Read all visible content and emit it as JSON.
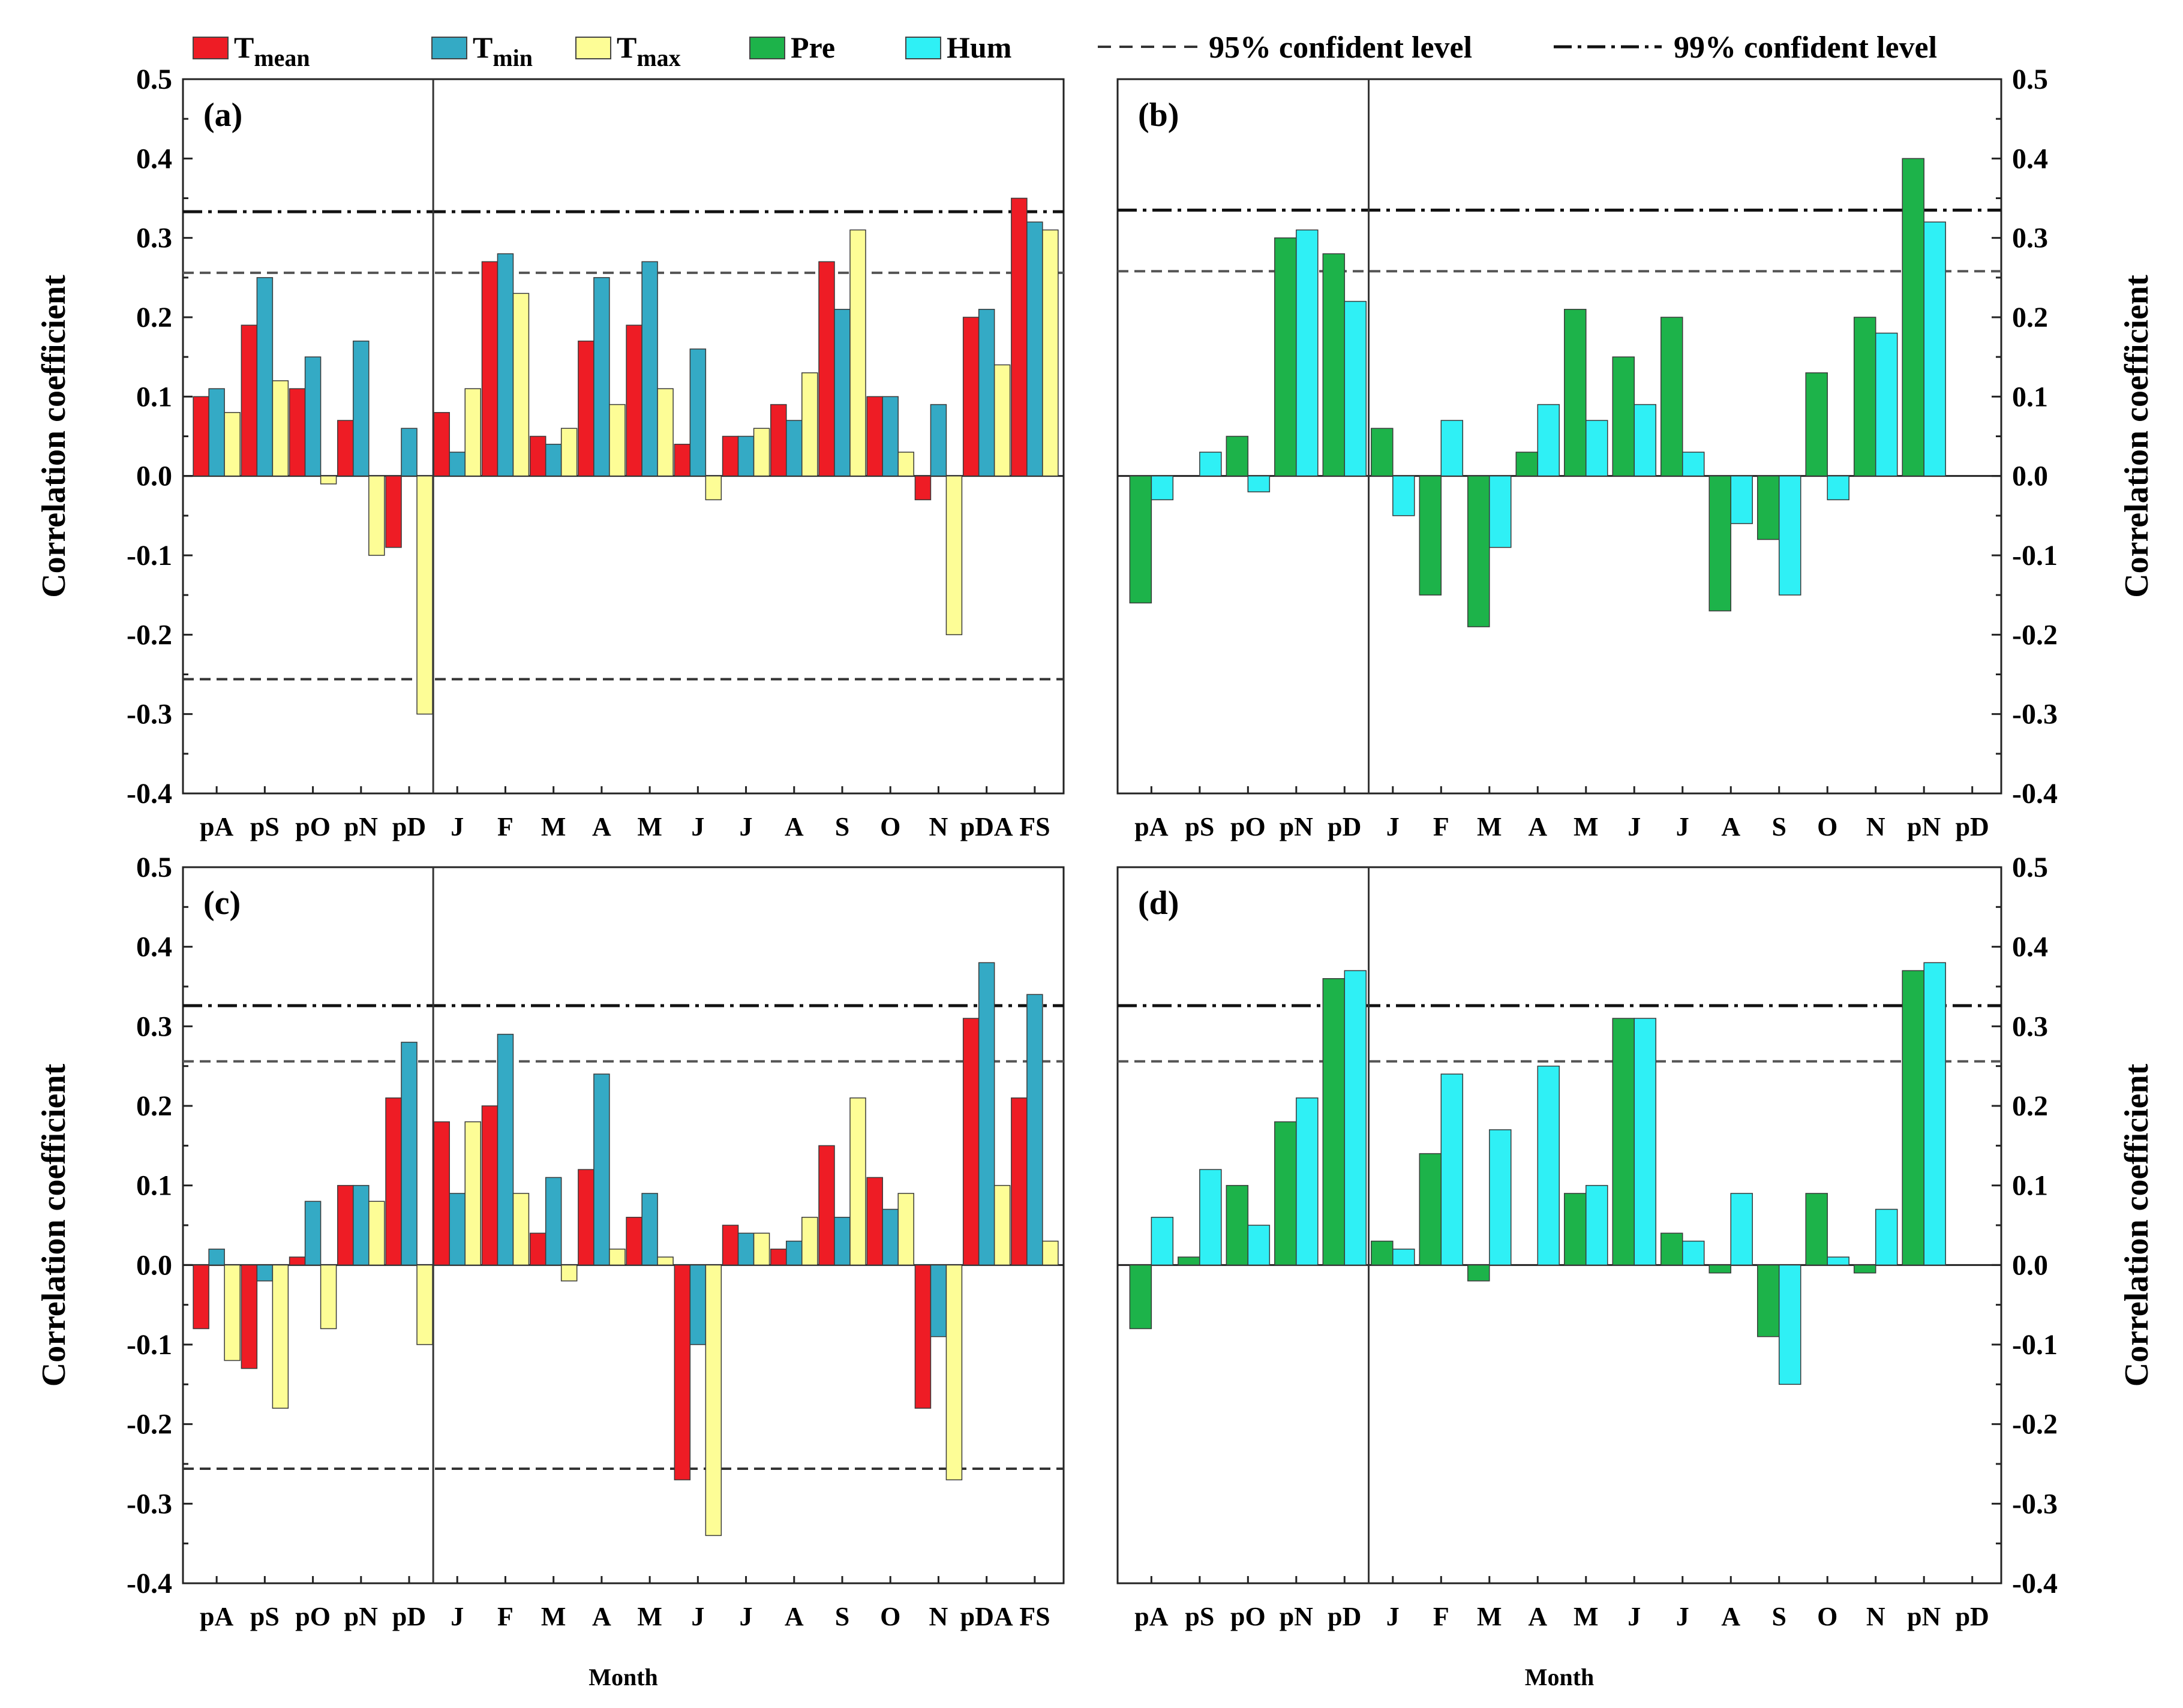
{
  "legend": {
    "items": [
      {
        "key": "Tmean",
        "label": "T",
        "sub": "mean",
        "color": "#ee1c25"
      },
      {
        "key": "Tmin",
        "label": "T",
        "sub": "min",
        "color": "#34aac5"
      },
      {
        "key": "Tmax",
        "label": "T",
        "sub": "max",
        "color": "#fdfd96"
      },
      {
        "key": "Pre",
        "label": "Pre",
        "sub": "",
        "color": "#1db34a"
      },
      {
        "key": "Hum",
        "label": "Hum",
        "sub": "",
        "color": "#2ff0f5"
      }
    ],
    "lines": [
      {
        "label": "95% confident level",
        "style": "dashed"
      },
      {
        "label": "99% confident level",
        "style": "dashdot"
      }
    ]
  },
  "axis_label_y": "Correlation coefficient",
  "axis_label_x": "Month",
  "chart_data": [
    {
      "panel": "(a)",
      "type": "bar",
      "ylabel": "Correlation coefficient",
      "xlabel": "",
      "ylim": [
        -0.4,
        0.5
      ],
      "yticks": [
        "0.5",
        "0.4",
        "0.3",
        "0.2",
        "0.1",
        "0.0",
        "-0.1",
        "-0.2",
        "-0.3",
        "-0.4"
      ],
      "yaxis_side": "left",
      "categories": [
        "pA",
        "pS",
        "pO",
        "pN",
        "pD",
        "J",
        "F",
        "M",
        "A",
        "M",
        "J",
        "J",
        "A",
        "S",
        "O",
        "N",
        "pDA",
        "FS"
      ],
      "divider_after": 5,
      "ci95": 0.256,
      "ci99": 0.333,
      "ci95_negative": -0.256,
      "series": [
        {
          "name": "Tmean",
          "values": [
            0.1,
            0.19,
            0.11,
            0.07,
            -0.09,
            0.08,
            0.27,
            0.05,
            0.17,
            0.19,
            0.04,
            0.05,
            0.09,
            0.27,
            0.1,
            -0.03,
            0.2,
            0.35
          ]
        },
        {
          "name": "Tmin",
          "values": [
            0.11,
            0.25,
            0.15,
            0.17,
            0.06,
            0.03,
            0.28,
            0.04,
            0.25,
            0.27,
            0.16,
            0.05,
            0.07,
            0.21,
            0.1,
            0.09,
            0.21,
            0.32
          ]
        },
        {
          "name": "Tmax",
          "values": [
            0.08,
            0.12,
            -0.01,
            -0.1,
            -0.3,
            0.11,
            0.23,
            0.06,
            0.09,
            0.11,
            -0.03,
            0.06,
            0.13,
            0.31,
            0.03,
            -0.2,
            0.14,
            0.31
          ]
        }
      ]
    },
    {
      "panel": "(b)",
      "type": "bar",
      "ylabel": "Correlation coefficient",
      "xlabel": "",
      "ylim": [
        -0.4,
        0.5
      ],
      "yticks": [
        "0.5",
        "0.4",
        "0.3",
        "0.2",
        "0.1",
        "0.0",
        "-0.1",
        "-0.2",
        "-0.3",
        "-0.4"
      ],
      "yaxis_side": "right",
      "categories": [
        "pA",
        "pS",
        "pO",
        "pN",
        "pD",
        "J",
        "F",
        "M",
        "A",
        "M",
        "J",
        "J",
        "A",
        "S",
        "O",
        "N",
        "pN",
        "pD"
      ],
      "divider_after": 5,
      "ci95": 0.258,
      "ci99": 0.335,
      "ci95_negative": null,
      "series": [
        {
          "name": "Pre",
          "values": [
            -0.16,
            0.0,
            0.05,
            0.3,
            0.28,
            0.06,
            -0.15,
            -0.19,
            0.03,
            0.21,
            0.15,
            0.2,
            -0.17,
            -0.08,
            0.13,
            0.2,
            0.4,
            0.0
          ]
        },
        {
          "name": "Hum",
          "values": [
            -0.03,
            0.03,
            -0.02,
            0.31,
            0.22,
            -0.05,
            0.07,
            -0.09,
            0.09,
            0.07,
            0.09,
            0.03,
            -0.06,
            -0.15,
            -0.03,
            0.18,
            0.32,
            0.0
          ]
        }
      ]
    },
    {
      "panel": "(c)",
      "type": "bar",
      "ylabel": "Correlation coefficient",
      "xlabel": "Month",
      "ylim": [
        -0.4,
        0.5
      ],
      "yticks": [
        "0.5",
        "0.4",
        "0.3",
        "0.2",
        "0.1",
        "0.0",
        "-0.1",
        "-0.2",
        "-0.3",
        "-0.4"
      ],
      "yaxis_side": "left",
      "categories": [
        "pA",
        "pS",
        "pO",
        "pN",
        "pD",
        "J",
        "F",
        "M",
        "A",
        "M",
        "J",
        "J",
        "A",
        "S",
        "O",
        "N",
        "pDA",
        "FS"
      ],
      "divider_after": 5,
      "ci95": 0.256,
      "ci99": 0.326,
      "ci95_negative": -0.256,
      "series": [
        {
          "name": "Tmean",
          "values": [
            -0.08,
            -0.13,
            0.01,
            0.1,
            0.21,
            0.18,
            0.2,
            0.04,
            0.12,
            0.06,
            -0.27,
            0.05,
            0.02,
            0.15,
            0.11,
            -0.18,
            0.31,
            0.21
          ]
        },
        {
          "name": "Tmin",
          "values": [
            0.02,
            -0.02,
            0.08,
            0.1,
            0.28,
            0.09,
            0.29,
            0.11,
            0.24,
            0.09,
            -0.1,
            0.04,
            0.03,
            0.06,
            0.07,
            -0.09,
            0.38,
            0.34
          ]
        },
        {
          "name": "Tmax",
          "values": [
            -0.12,
            -0.18,
            -0.08,
            0.08,
            -0.1,
            0.18,
            0.09,
            -0.02,
            0.02,
            0.01,
            -0.34,
            0.04,
            0.06,
            0.21,
            0.09,
            -0.27,
            0.1,
            0.03
          ]
        }
      ]
    },
    {
      "panel": "(d)",
      "type": "bar",
      "ylabel": "Correlation coefficient",
      "xlabel": "Month",
      "ylim": [
        -0.4,
        0.5
      ],
      "yticks": [
        "0.5",
        "0.4",
        "0.3",
        "0.2",
        "0.1",
        "0.0",
        "-0.1",
        "-0.2",
        "-0.3",
        "-0.4"
      ],
      "yaxis_side": "right",
      "categories": [
        "pA",
        "pS",
        "pO",
        "pN",
        "pD",
        "J",
        "F",
        "M",
        "A",
        "M",
        "J",
        "J",
        "A",
        "S",
        "O",
        "N",
        "pN",
        "pD"
      ],
      "divider_after": 5,
      "ci95": 0.256,
      "ci99": 0.326,
      "ci95_negative": null,
      "series": [
        {
          "name": "Pre",
          "values": [
            -0.08,
            0.01,
            0.1,
            0.18,
            0.36,
            0.03,
            0.14,
            -0.02,
            0.0,
            0.09,
            0.31,
            0.04,
            -0.01,
            -0.09,
            0.09,
            -0.01,
            0.37,
            0.0
          ]
        },
        {
          "name": "Hum",
          "values": [
            0.06,
            0.12,
            0.05,
            0.21,
            0.37,
            0.02,
            0.24,
            0.17,
            0.25,
            0.1,
            0.31,
            0.03,
            0.09,
            -0.15,
            0.01,
            0.07,
            0.38,
            0.0
          ]
        }
      ]
    }
  ]
}
